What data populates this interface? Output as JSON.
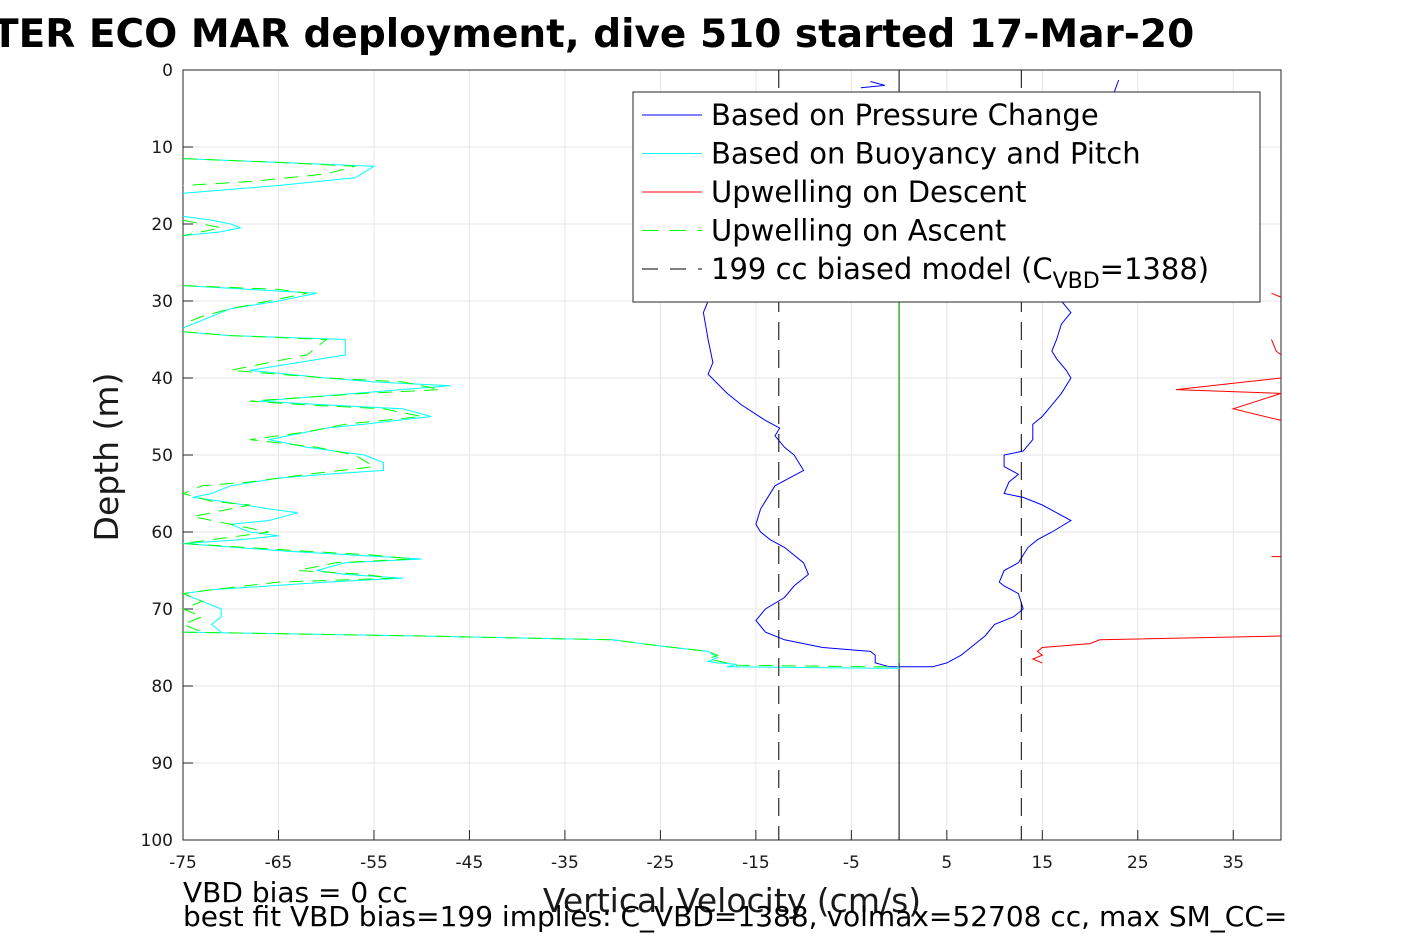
{
  "chart_data": {
    "type": "line",
    "title": "TER ECO MAR deployment, dive 510 started 17-Mar-20",
    "xlabel": "Vertical Velocity (cm/s)",
    "ylabel": "Depth (m)",
    "xlim": [
      -75,
      40
    ],
    "ylim": [
      0,
      100
    ],
    "y_reversed": true,
    "x_ticks": [
      -75,
      -65,
      -55,
      -45,
      -35,
      -25,
      -15,
      -5,
      5,
      15,
      25,
      35
    ],
    "y_ticks": [
      0,
      10,
      20,
      30,
      40,
      50,
      60,
      70,
      80,
      90,
      100
    ],
    "grid": true,
    "legend_position": "top-right",
    "series": [
      {
        "name": "Based on Pressure Change",
        "color": "#0000ff",
        "style": "solid",
        "segments": [
          [
            [
              -3,
              1.5
            ],
            [
              -1.5,
              2
            ],
            [
              -4,
              2.3
            ]
          ],
          [
            [
              -20,
              30
            ],
            [
              -20.5,
              31.5
            ],
            [
              -20,
              35
            ],
            [
              -19.5,
              38
            ],
            [
              -20,
              39.5
            ],
            [
              -18,
              42
            ],
            [
              -16.5,
              43.5
            ],
            [
              -14,
              45.5
            ],
            [
              -12.5,
              46.5
            ],
            [
              -13,
              47.5
            ],
            [
              -12,
              49
            ],
            [
              -11,
              50
            ],
            [
              -10,
              52
            ],
            [
              -11.5,
              53
            ],
            [
              -13,
              54
            ],
            [
              -14,
              56
            ],
            [
              -14.5,
              57
            ],
            [
              -15,
              59
            ],
            [
              -14.5,
              60
            ],
            [
              -13.5,
              61
            ],
            [
              -12,
              62
            ],
            [
              -10,
              64
            ],
            [
              -9.5,
              65.5
            ],
            [
              -11,
              67
            ],
            [
              -12,
              68.5
            ],
            [
              -14,
              70
            ],
            [
              -15,
              71.5
            ],
            [
              -14,
              73
            ],
            [
              -12,
              74
            ],
            [
              -8,
              75
            ],
            [
              -3,
              75.5
            ],
            [
              -2.5,
              76
            ],
            [
              -2.5,
              77
            ],
            [
              -1,
              77.5
            ],
            [
              0,
              77.5
            ],
            [
              3.5,
              77.5
            ],
            [
              5,
              77
            ],
            [
              6.5,
              76
            ],
            [
              7.5,
              75
            ],
            [
              9,
              73.5
            ],
            [
              10,
              72
            ],
            [
              12,
              71
            ],
            [
              13,
              70
            ],
            [
              12.5,
              68
            ],
            [
              11,
              67
            ],
            [
              10.5,
              66.5
            ],
            [
              11,
              65
            ],
            [
              12.5,
              64
            ],
            [
              13.5,
              62
            ],
            [
              14.5,
              61
            ],
            [
              16,
              60
            ],
            [
              18,
              58.5
            ],
            [
              15,
              56.5
            ],
            [
              13,
              55.5
            ],
            [
              11,
              55
            ],
            [
              11.5,
              53.5
            ],
            [
              12.5,
              52.5
            ],
            [
              11,
              51.5
            ],
            [
              11,
              50
            ],
            [
              13,
              49.5
            ],
            [
              14,
              48
            ],
            [
              14,
              46
            ],
            [
              15,
              45
            ],
            [
              16,
              43.5
            ],
            [
              17,
              42
            ],
            [
              18,
              40
            ],
            [
              17.5,
              39
            ],
            [
              16.5,
              37.5
            ],
            [
              16,
              36.5
            ],
            [
              16.5,
              35
            ],
            [
              17,
              33
            ],
            [
              18,
              31.5
            ],
            [
              17,
              30
            ],
            [
              16,
              29
            ]
          ],
          [
            [
              23,
              1.3
            ],
            [
              22.5,
              3
            ]
          ]
        ]
      },
      {
        "name": "Based on Buoyancy and Pitch",
        "color": "#00ffff",
        "style": "solid",
        "segments": [
          [
            [
              -75,
              11.5
            ],
            [
              -65,
              12
            ],
            [
              -55,
              12.5
            ],
            [
              -57,
              14
            ],
            [
              -65,
              15
            ],
            [
              -75,
              16
            ]
          ],
          [
            [
              -75,
              19
            ],
            [
              -72,
              19.5
            ],
            [
              -70,
              20
            ],
            [
              -69,
              20.5
            ],
            [
              -71,
              21
            ],
            [
              -75,
              21.5
            ]
          ],
          [
            [
              -75,
              28
            ],
            [
              -68,
              28.5
            ],
            [
              -61,
              29
            ],
            [
              -65,
              30
            ],
            [
              -70,
              31
            ],
            [
              -73,
              32.5
            ],
            [
              -75,
              33.5
            ]
          ],
          [
            [
              -75,
              34
            ],
            [
              -70,
              34.5
            ],
            [
              -58,
              35
            ],
            [
              -58,
              37
            ],
            [
              -63,
              38
            ],
            [
              -68,
              39
            ],
            [
              -60,
              40
            ],
            [
              -55,
              40.5
            ],
            [
              -47,
              41
            ],
            [
              -57,
              42
            ],
            [
              -67,
              43
            ],
            [
              -60,
              43.5
            ],
            [
              -52,
              44
            ],
            [
              -49,
              45
            ],
            [
              -56,
              46
            ],
            [
              -60,
              46.5
            ],
            [
              -66,
              48
            ],
            [
              -62,
              49
            ],
            [
              -56,
              50
            ],
            [
              -54,
              51
            ],
            [
              -54,
              52
            ],
            [
              -60,
              52.5
            ],
            [
              -65,
              53
            ],
            [
              -70,
              54
            ],
            [
              -72,
              55
            ],
            [
              -74,
              55.5
            ],
            [
              -71,
              56
            ],
            [
              -66,
              57
            ],
            [
              -63,
              57.5
            ],
            [
              -66,
              58.5
            ],
            [
              -70,
              59
            ],
            [
              -68,
              60
            ],
            [
              -65,
              60.5
            ],
            [
              -69,
              61
            ],
            [
              -75,
              61.5
            ],
            [
              -64,
              62.5
            ],
            [
              -57,
              63
            ],
            [
              -50,
              63.5
            ],
            [
              -58,
              64
            ],
            [
              -61,
              65
            ],
            [
              -58,
              65.5
            ],
            [
              -52,
              66
            ],
            [
              -60,
              66.5
            ],
            [
              -72,
              67.5
            ],
            [
              -75,
              68
            ],
            [
              -73,
              69
            ],
            [
              -71,
              70
            ],
            [
              -71,
              71
            ],
            [
              -72,
              72
            ],
            [
              -71,
              73
            ]
          ],
          [
            [
              -75,
              73
            ],
            [
              -50,
              73.5
            ],
            [
              -30,
              74
            ],
            [
              -25,
              74.8
            ],
            [
              -20,
              75.5
            ],
            [
              -19,
              76.3
            ],
            [
              -20,
              76.8
            ],
            [
              -19,
              77
            ],
            [
              -17,
              77.2
            ],
            [
              -18,
              77.5
            ],
            [
              -2,
              77.7
            ],
            [
              0,
              77.7
            ]
          ]
        ]
      },
      {
        "name": "Upwelling on Descent",
        "color": "#ff0000",
        "style": "solid",
        "segments": [
          [
            [
              39,
              29
            ],
            [
              40,
              29.5
            ]
          ],
          [
            [
              39,
              35
            ],
            [
              39.5,
              36.5
            ],
            [
              40,
              37
            ]
          ],
          [
            [
              40,
              40
            ],
            [
              29,
              41.5
            ],
            [
              40,
              42
            ],
            [
              35,
              44
            ],
            [
              40,
              45.5
            ]
          ],
          [
            [
              39,
              63.2
            ],
            [
              40,
              63.2
            ]
          ],
          [
            [
              40,
              73.5
            ],
            [
              21,
              74
            ],
            [
              20,
              74.5
            ],
            [
              15,
              75
            ],
            [
              14.5,
              75.5
            ],
            [
              15,
              76
            ],
            [
              14,
              76.5
            ],
            [
              15,
              77
            ]
          ]
        ]
      },
      {
        "name": "Upwelling on Ascent",
        "color": "#00ff00",
        "style": "dashed",
        "segments": [
          [
            [
              -75,
              11.5
            ],
            [
              -65,
              12
            ],
            [
              -57,
              12.5
            ],
            [
              -60,
              13.5
            ],
            [
              -68,
              14.5
            ],
            [
              -75,
              15
            ]
          ],
          [
            [
              -75,
              19.5
            ],
            [
              -73,
              20
            ],
            [
              -71,
              20.5
            ],
            [
              -73,
              21
            ],
            [
              -75,
              21.5
            ]
          ],
          [
            [
              -75,
              28
            ],
            [
              -65,
              28.5
            ],
            [
              -62,
              29
            ],
            [
              -70,
              31
            ],
            [
              -73,
              32
            ],
            [
              -75,
              33
            ]
          ],
          [
            [
              -75,
              34
            ],
            [
              -70,
              34.5
            ],
            [
              -60,
              35
            ],
            [
              -62,
              37
            ],
            [
              -66,
              38
            ],
            [
              -70,
              39
            ],
            [
              -60,
              40
            ],
            [
              -52,
              40.5
            ],
            [
              -48,
              41.5
            ],
            [
              -56,
              42
            ],
            [
              -68,
              43
            ],
            [
              -62,
              43.5
            ],
            [
              -54,
              44
            ],
            [
              -50,
              45
            ],
            [
              -58,
              46
            ],
            [
              -62,
              47
            ],
            [
              -68,
              48
            ],
            [
              -61,
              49
            ],
            [
              -57,
              50
            ],
            [
              -55,
              51.5
            ],
            [
              -62,
              52.5
            ],
            [
              -68,
              53.5
            ],
            [
              -73,
              54
            ],
            [
              -75,
              55
            ],
            [
              -72,
              56
            ],
            [
              -68,
              56.5
            ],
            [
              -74,
              58
            ],
            [
              -70,
              59
            ],
            [
              -66,
              60
            ],
            [
              -72,
              61
            ],
            [
              -75,
              61.5
            ],
            [
              -62,
              62.5
            ],
            [
              -55,
              63
            ],
            [
              -51,
              63.5
            ],
            [
              -59,
              64
            ],
            [
              -63,
              65
            ],
            [
              -56,
              65.5
            ],
            [
              -53,
              66
            ],
            [
              -65,
              66.5
            ],
            [
              -72,
              67.5
            ],
            [
              -75,
              68
            ],
            [
              -73,
              69
            ],
            [
              -75,
              70
            ],
            [
              -73,
              71
            ],
            [
              -75,
              72
            ],
            [
              -73,
              73
            ]
          ],
          [
            [
              -75,
              73
            ],
            [
              -50,
              73.5
            ],
            [
              -30,
              74
            ],
            [
              -25,
              74.8
            ],
            [
              -20,
              75.5
            ],
            [
              -19,
              76
            ],
            [
              -20,
              76.5
            ],
            [
              -18,
              77
            ],
            [
              -17,
              77.3
            ],
            [
              -2,
              77.5
            ],
            [
              0,
              77.5
            ]
          ]
        ]
      },
      {
        "name": "199 cc biased model (C<sub>VBD</sub>=1388)",
        "color": "#000000",
        "style": "dashed",
        "segments": [
          [
            [
              -12.6,
              0
            ],
            [
              -12.6,
              100
            ]
          ],
          [
            [
              12.8,
              0
            ],
            [
              12.8,
              100
            ]
          ]
        ]
      }
    ],
    "zero_line": {
      "x": 0,
      "color": "#000000"
    },
    "zero_line_green": {
      "x": 0,
      "color": "#00aa00",
      "y_from": 30,
      "y_to": 77
    }
  },
  "legend": {
    "items": [
      {
        "text": "Based on Pressure Change",
        "color": "#0000ff",
        "dash": "none"
      },
      {
        "text": "Based on Buoyancy and Pitch",
        "color": "#00ffff",
        "dash": "none"
      },
      {
        "text": "Upwelling on Descent",
        "color": "#ff0000",
        "dash": "none"
      },
      {
        "text": "Upwelling on Ascent",
        "color": "#00ff00",
        "dash": "16,12"
      },
      {
        "text_main": "199 cc biased model (C",
        "text_sub": "VBD",
        "text_end": "=1388)",
        "color": "#000000",
        "dash": "16,12"
      }
    ]
  },
  "footer": {
    "line1": "VBD bias = 0 cc",
    "line2": "best fit VBD bias=199 implies: C_VBD=1388, volmax=52708 cc, max SM_CC="
  }
}
